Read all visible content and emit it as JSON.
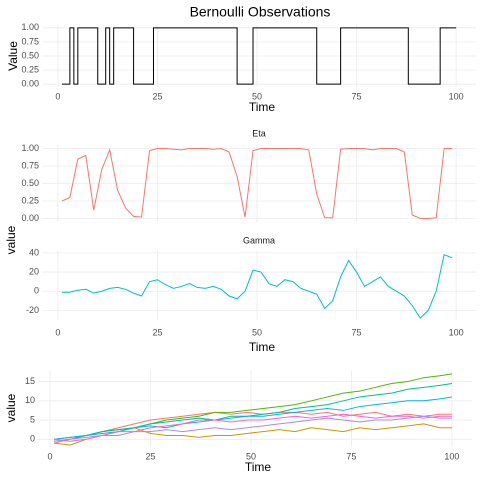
{
  "chart_data": [
    {
      "type": "line",
      "step": true,
      "title": "Bernoulli Observations",
      "xlabel": "Time",
      "ylabel": "Value",
      "color": "#000000",
      "grid": true,
      "x": [
        1,
        2,
        3,
        4,
        5,
        6,
        7,
        8,
        9,
        10,
        11,
        12,
        13,
        14,
        15,
        16,
        17,
        18,
        19,
        20,
        21,
        22,
        23,
        24,
        25,
        26,
        27,
        28,
        29,
        30,
        31,
        32,
        33,
        34,
        35,
        36,
        37,
        38,
        39,
        40,
        41,
        42,
        43,
        44,
        45,
        46,
        47,
        48,
        49,
        50,
        51,
        52,
        53,
        54,
        55,
        56,
        57,
        58,
        59,
        60,
        61,
        62,
        63,
        64,
        65,
        66,
        67,
        68,
        69,
        70,
        71,
        72,
        73,
        74,
        75,
        76,
        77,
        78,
        79,
        80,
        81,
        82,
        83,
        84,
        85,
        86,
        87,
        88,
        89,
        90,
        91,
        92,
        93,
        94,
        95,
        96,
        97,
        98,
        99,
        100
      ],
      "values": [
        0,
        0,
        1,
        0,
        1,
        1,
        1,
        1,
        1,
        0,
        0,
        1,
        0,
        1,
        1,
        1,
        1,
        1,
        0,
        0,
        0,
        0,
        0,
        1,
        1,
        1,
        1,
        1,
        1,
        1,
        1,
        1,
        1,
        1,
        1,
        1,
        1,
        1,
        1,
        1,
        1,
        1,
        1,
        1,
        0,
        0,
        0,
        0,
        1,
        1,
        1,
        1,
        1,
        1,
        1,
        1,
        1,
        1,
        1,
        1,
        1,
        1,
        1,
        1,
        0,
        0,
        0,
        0,
        0,
        0,
        1,
        1,
        1,
        1,
        1,
        1,
        1,
        1,
        1,
        1,
        1,
        1,
        1,
        1,
        1,
        1,
        1,
        0,
        0,
        0,
        0,
        0,
        0,
        0,
        0,
        1,
        1,
        1,
        1,
        1
      ],
      "xlim": [
        -4,
        105
      ],
      "xticks": [
        0,
        25,
        50,
        75,
        100
      ],
      "ylim": [
        -0.05,
        1.05
      ],
      "yticks": [
        {
          "value": 0,
          "label": "0.00"
        },
        {
          "value": 0.25,
          "label": "0.25"
        },
        {
          "value": 0.5,
          "label": "0.50"
        },
        {
          "value": 0.75,
          "label": "0.75"
        },
        {
          "value": 1,
          "label": "1.00"
        }
      ]
    },
    {
      "type": "line",
      "title": "Eta",
      "color": "#F8766D",
      "grid": true,
      "x": [
        1,
        3,
        5,
        7,
        9,
        11,
        13,
        15,
        17,
        19,
        21,
        23,
        25,
        27,
        29,
        31,
        33,
        35,
        37,
        39,
        41,
        43,
        45,
        47,
        49,
        51,
        53,
        55,
        57,
        59,
        61,
        63,
        65,
        67,
        69,
        71,
        73,
        75,
        77,
        79,
        81,
        83,
        85,
        87,
        89,
        91,
        93,
        95,
        97,
        99
      ],
      "values": [
        0.25,
        0.3,
        0.85,
        0.9,
        0.12,
        0.7,
        0.98,
        0.4,
        0.15,
        0.03,
        0.02,
        0.97,
        1,
        1,
        0.99,
        0.98,
        1,
        1,
        1,
        0.99,
        1,
        0.95,
        0.6,
        0.02,
        0.97,
        1,
        1,
        1,
        1,
        1,
        1,
        0.98,
        0.35,
        0.01,
        0.01,
        0.99,
        1,
        1,
        1,
        0.98,
        1,
        1,
        1,
        0.95,
        0.05,
        0,
        0,
        0.01,
        1,
        1
      ],
      "xlim": [
        -4,
        105
      ],
      "ylim": [
        -0.05,
        1.05
      ],
      "yticks": [
        {
          "value": 0,
          "label": "0.00"
        },
        {
          "value": 0.25,
          "label": "0.25"
        },
        {
          "value": 0.5,
          "label": "0.50"
        },
        {
          "value": 0.75,
          "label": "0.75"
        },
        {
          "value": 1,
          "label": "1.00"
        }
      ]
    },
    {
      "type": "line",
      "title": "Gamma",
      "xlabel": "Time",
      "ylabel": "value",
      "color": "#00BFC4",
      "grid": true,
      "x": [
        1,
        3,
        5,
        7,
        9,
        11,
        13,
        15,
        17,
        19,
        21,
        23,
        25,
        27,
        29,
        31,
        33,
        35,
        37,
        39,
        41,
        43,
        45,
        47,
        49,
        51,
        53,
        55,
        57,
        59,
        61,
        63,
        65,
        67,
        69,
        71,
        73,
        75,
        77,
        79,
        81,
        83,
        85,
        87,
        89,
        91,
        93,
        95,
        97,
        99
      ],
      "values": [
        -1,
        -1,
        1,
        2,
        -2,
        0,
        3,
        4,
        2,
        -2,
        -5,
        10,
        12,
        7,
        3,
        5,
        8,
        4,
        3,
        5,
        2,
        -5,
        -8,
        0,
        22,
        20,
        8,
        5,
        12,
        10,
        3,
        0,
        -3,
        -18,
        -10,
        15,
        32,
        20,
        5,
        10,
        15,
        5,
        0,
        -5,
        -15,
        -28,
        -20,
        0,
        38,
        35
      ],
      "xlim": [
        -4,
        105
      ],
      "xticks": [
        0,
        25,
        50,
        75,
        100
      ],
      "ylim": [
        -30,
        43
      ],
      "yticks": [
        -20,
        0,
        20,
        40
      ]
    },
    {
      "type": "multiline",
      "xlabel": "Time",
      "ylabel": "value",
      "grid": true,
      "x": [
        1,
        5,
        9,
        13,
        17,
        21,
        25,
        29,
        33,
        37,
        41,
        45,
        49,
        53,
        57,
        61,
        65,
        69,
        73,
        77,
        81,
        85,
        89,
        93,
        97,
        100
      ],
      "series": [
        {
          "color": "#F8766D",
          "values": [
            -1,
            0,
            1,
            2,
            3,
            4,
            5,
            5.5,
            6,
            6.5,
            7,
            6.5,
            7,
            6.5,
            7,
            7,
            6.5,
            7,
            6,
            6.5,
            7,
            6,
            6.5,
            6,
            6.5,
            6.5
          ]
        },
        {
          "color": "#C49A00",
          "values": [
            -1,
            -1.5,
            0,
            1,
            2,
            3,
            1.5,
            1,
            1,
            0.5,
            1,
            1,
            1.5,
            2,
            2.5,
            2,
            3,
            2.5,
            2,
            3,
            2.5,
            3,
            3.5,
            4,
            3,
            3
          ]
        },
        {
          "color": "#53B400",
          "values": [
            0,
            0.5,
            1,
            2,
            2.5,
            3,
            4,
            5,
            5.5,
            6,
            7,
            7,
            7.5,
            8,
            8.5,
            9,
            10,
            11,
            12,
            12.5,
            13.5,
            14.5,
            15,
            16,
            16.5,
            17
          ]
        },
        {
          "color": "#00C094",
          "values": [
            -0.5,
            0,
            1,
            2,
            2.5,
            3,
            4,
            4.5,
            5,
            5.5,
            5,
            6,
            6,
            6.5,
            7,
            8,
            8.5,
            9,
            10,
            11,
            11.5,
            12,
            13,
            13.5,
            14,
            14.5
          ]
        },
        {
          "color": "#00B6EB",
          "values": [
            0,
            0.5,
            1,
            1.5,
            2,
            3,
            3.5,
            3,
            4,
            4.5,
            5,
            5.5,
            6,
            6,
            6.5,
            7,
            7.5,
            8,
            7.5,
            8.5,
            9,
            9.5,
            10,
            10,
            10.5,
            11
          ]
        },
        {
          "color": "#A58AFF",
          "values": [
            -0.5,
            0,
            0.5,
            1,
            1,
            2,
            2,
            2.5,
            2,
            2.5,
            3,
            2.5,
            3,
            3.5,
            4,
            4.5,
            5,
            5.5,
            5,
            4.5,
            5,
            5,
            5.5,
            6,
            5.5,
            5.5
          ]
        },
        {
          "color": "#FB61D7",
          "values": [
            0,
            -0.5,
            0,
            1,
            2,
            2,
            3,
            3.5,
            4,
            5,
            5,
            4.5,
            5,
            5,
            5.5,
            6,
            5.5,
            6,
            6.5,
            6,
            5.5,
            6,
            6,
            5.5,
            6,
            6
          ]
        }
      ],
      "xlim": [
        -3,
        105
      ],
      "xticks": [
        0,
        25,
        50,
        75,
        100
      ],
      "ylim": [
        -2,
        18
      ],
      "yticks": [
        0,
        5,
        10,
        15
      ]
    }
  ]
}
